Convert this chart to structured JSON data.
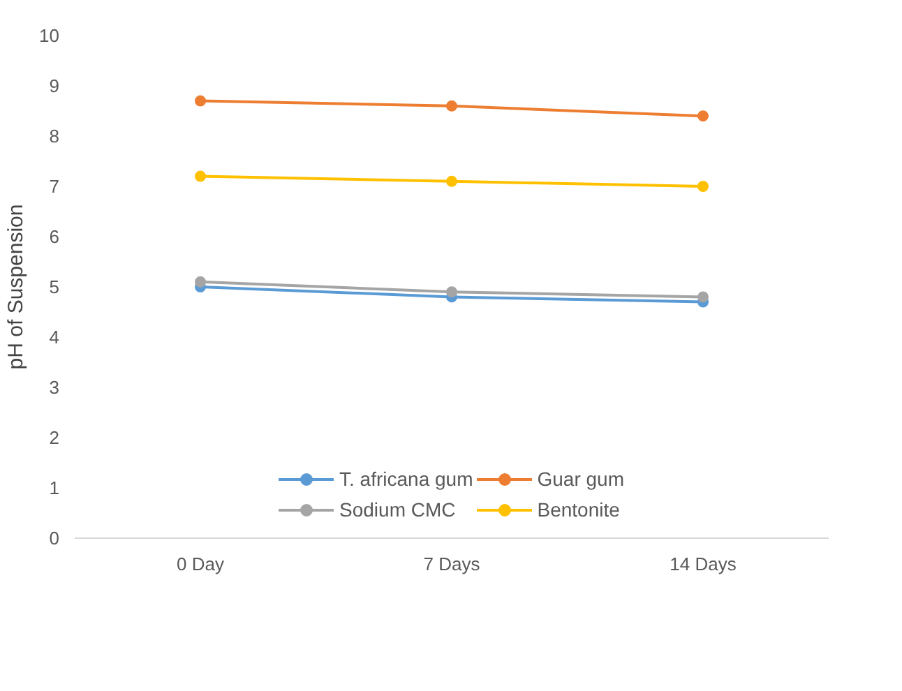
{
  "chart_data": {
    "type": "line",
    "ylabel": "pH of Suspension",
    "categories": [
      "0 Day",
      "7 Days",
      "14 Days"
    ],
    "series": [
      {
        "name": "T. africana gum",
        "color": "#5b9bd5",
        "values": [
          5.0,
          4.8,
          4.7
        ]
      },
      {
        "name": "Guar gum",
        "color": "#ed7d31",
        "values": [
          8.7,
          8.6,
          8.4
        ]
      },
      {
        "name": "Sodium CMC",
        "color": "#a5a5a5",
        "values": [
          5.1,
          4.9,
          4.8
        ]
      },
      {
        "name": "Bentonite",
        "color": "#ffc000",
        "values": [
          7.2,
          7.1,
          7.0
        ]
      }
    ],
    "ylim": [
      0,
      10
    ],
    "yticks": [
      0,
      1,
      2,
      3,
      4,
      5,
      6,
      7,
      8,
      9,
      10
    ],
    "grid": false,
    "legend": "bottom",
    "marker": "circle",
    "line_style": "solid"
  }
}
